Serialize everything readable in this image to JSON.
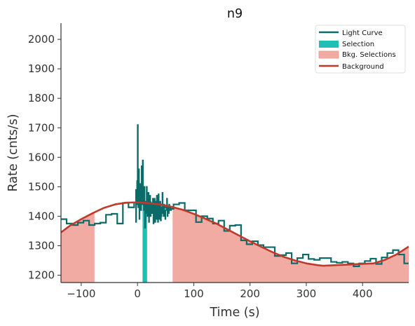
{
  "chart_data": {
    "type": "line",
    "title": "n9",
    "xlabel": "Time (s)",
    "ylabel": "Rate (cnts/s)",
    "xlim": [
      -136,
      482
    ],
    "ylim": [
      1175,
      2055
    ],
    "xticks": [
      -100,
      0,
      100,
      200,
      300,
      400
    ],
    "yticks": [
      1200,
      1300,
      1400,
      1500,
      1600,
      1700,
      1800,
      1900,
      2000
    ],
    "legend_position": "top-right",
    "legend": [
      "Light Curve",
      "Selection",
      "Bkg. Selections",
      "Background"
    ],
    "colors": {
      "light_curve": "#0b6b69",
      "selection": "#1ebfb4",
      "bkg_selection": "#f2aba3",
      "background": "#c0392b",
      "axis": "#333333"
    },
    "series": [
      {
        "name": "Light Curve",
        "kind": "step",
        "x": [
          -136,
          -126,
          -116,
          -106,
          -96,
          -86,
          -76,
          -66,
          -56,
          -46,
          -36,
          -26,
          -16,
          -6,
          4,
          14,
          24,
          34,
          44,
          54,
          64,
          74,
          84,
          94,
          104,
          114,
          124,
          134,
          144,
          154,
          164,
          174,
          184,
          194,
          204,
          214,
          224,
          234,
          244,
          254,
          264,
          274,
          284,
          294,
          304,
          314,
          324,
          334,
          344,
          354,
          364,
          374,
          384,
          394,
          404,
          414,
          424,
          434,
          444,
          454,
          464,
          474
        ],
        "y": [
          1390,
          1375,
          1370,
          1378,
          1385,
          1370,
          1375,
          1378,
          1405,
          1408,
          1375,
          1445,
          1430,
          1447,
          1448,
          1447,
          1442,
          1440,
          1430,
          1425,
          1440,
          1445,
          1420,
          1420,
          1380,
          1400,
          1392,
          1375,
          1385,
          1350,
          1368,
          1370,
          1318,
          1305,
          1315,
          1302,
          1295,
          1295,
          1265,
          1268,
          1275,
          1240,
          1258,
          1270,
          1255,
          1252,
          1258,
          1258,
          1245,
          1242,
          1245,
          1240,
          1230,
          1240,
          1248,
          1256,
          1238,
          1260,
          1275,
          1285,
          1270,
          1240
        ]
      },
      {
        "name": "Light Curve (fine bins)",
        "kind": "step",
        "x": [
          -4,
          -3,
          -2,
          -1,
          0,
          1,
          2,
          3,
          4,
          5,
          6,
          7,
          8,
          9,
          10,
          11,
          12,
          13,
          14,
          15,
          16,
          17,
          18,
          19,
          20,
          21,
          22,
          23,
          24,
          25,
          26,
          27,
          28,
          29,
          30,
          31,
          32,
          33,
          34,
          35,
          36,
          37,
          38,
          39,
          40,
          41,
          42,
          43,
          44,
          45,
          46,
          47,
          48,
          49,
          50,
          51,
          52,
          53,
          54,
          55,
          56,
          57,
          58,
          59,
          60
        ],
        "y": [
          1490,
          1380,
          1440,
          1520,
          1710,
          1430,
          1560,
          1390,
          1500,
          1510,
          1420,
          1570,
          1440,
          1590,
          1480,
          1420,
          1500,
          1360,
          1450,
          1410,
          1500,
          1400,
          1470,
          1480,
          1380,
          1420,
          1470,
          1400,
          1440,
          1430,
          1410,
          1460,
          1375,
          1420,
          1460,
          1380,
          1450,
          1390,
          1470,
          1420,
          1380,
          1475,
          1440,
          1390,
          1450,
          1385,
          1400,
          1430,
          1480,
          1410,
          1400,
          1440,
          1420,
          1390,
          1420,
          1435,
          1460,
          1400,
          1430,
          1410,
          1440,
          1420,
          1430,
          1425,
          1420
        ]
      },
      {
        "name": "Background",
        "kind": "line",
        "x": [
          -136,
          -120,
          -100,
          -80,
          -60,
          -40,
          -20,
          0,
          20,
          40,
          60,
          80,
          100,
          120,
          140,
          160,
          180,
          200,
          220,
          240,
          260,
          280,
          300,
          320,
          330,
          420,
          440,
          460,
          482
        ],
        "y": [
          1345,
          1368,
          1390,
          1410,
          1428,
          1440,
          1446,
          1447,
          1444,
          1440,
          1432,
          1422,
          1408,
          1392,
          1375,
          1355,
          1335,
          1315,
          1296,
          1278,
          1262,
          1250,
          1240,
          1234,
          1232,
          1240,
          1252,
          1270,
          1297
        ]
      }
    ],
    "selection": {
      "x_range": [
        9,
        17
      ]
    },
    "bkg_selections": [
      {
        "x_range": [
          -136,
          -77
        ]
      },
      {
        "x_range": [
          63,
          482
        ]
      }
    ]
  }
}
